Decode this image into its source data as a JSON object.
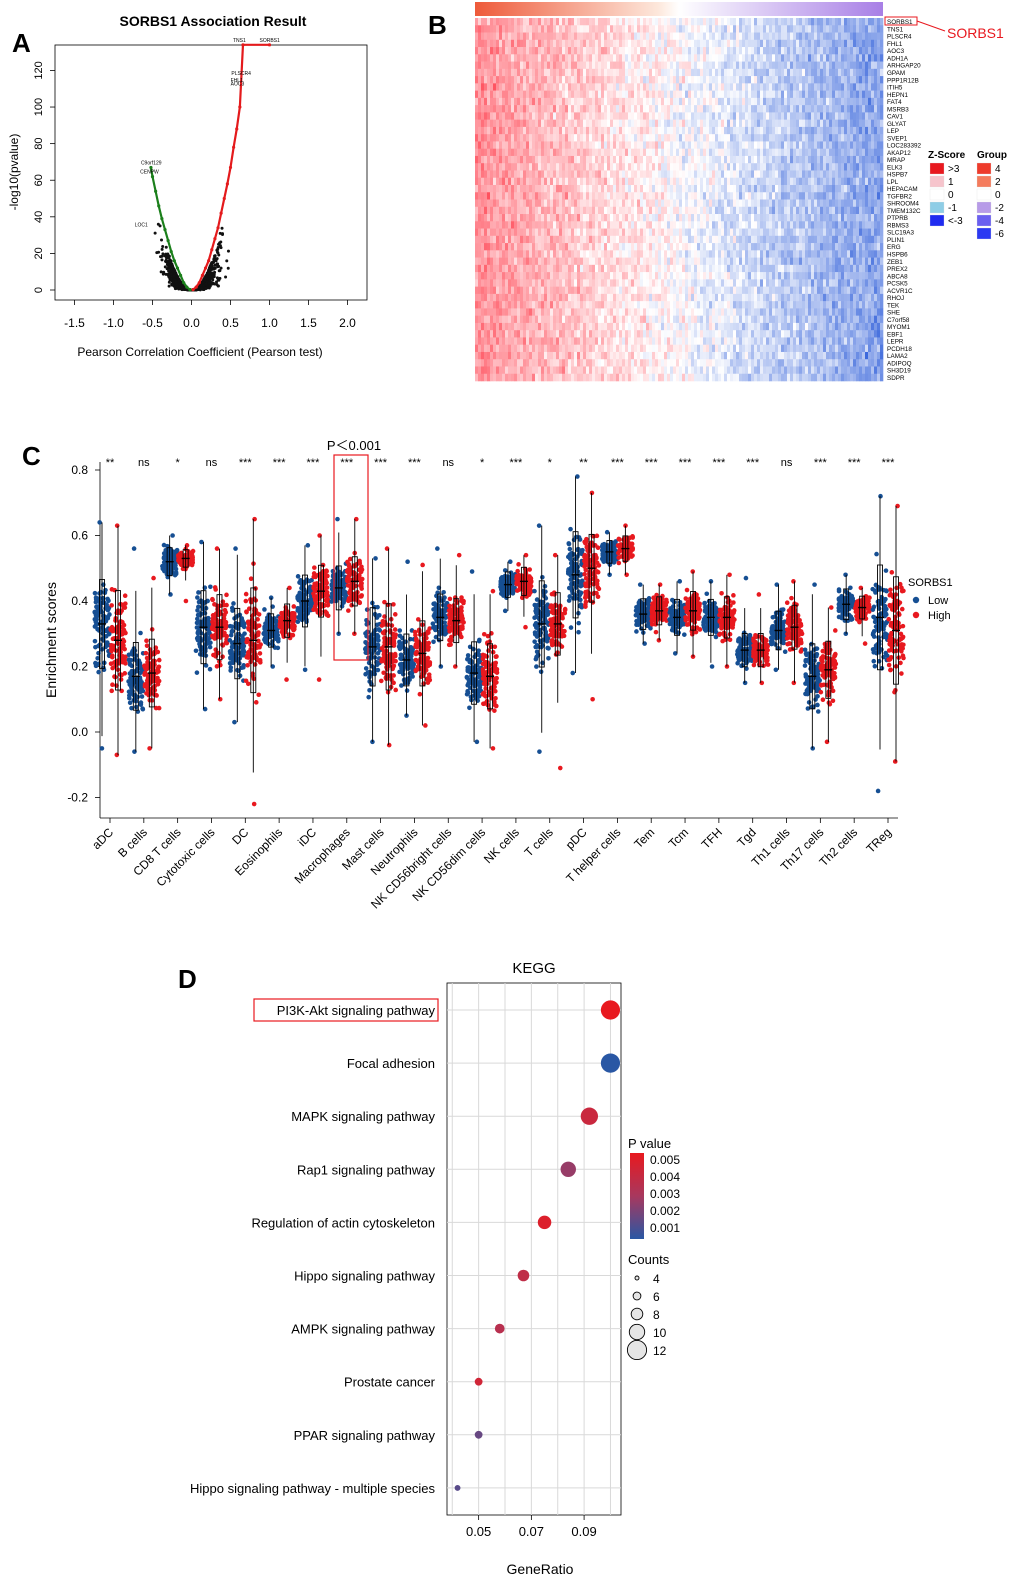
{
  "panels": {
    "A": "A",
    "B": "B",
    "C": "C",
    "D": "D"
  },
  "colors": {
    "red": "#e41a1c",
    "green": "#1b7f1b",
    "navy": "#1f4e8c",
    "high_red": "#e8191f",
    "low_blue": "#164f93",
    "pval_high": "#e8191f",
    "pval_low": "#2957a4"
  },
  "panelA": {
    "title": "SORBS1 Association Result",
    "xlabel": "Pearson Correlation Coefficient (Pearson test)",
    "ylabel": "-log10(pvalue)",
    "xticks": [
      "-1.5",
      "-1.0",
      "-0.5",
      "0.0",
      "0.5",
      "1.0",
      "1.5",
      "2.0"
    ],
    "yticks": [
      "0",
      "20",
      "40",
      "60",
      "80",
      "100",
      "120"
    ],
    "labels": [
      {
        "text": "TNS1",
        "x": 0.66,
        "y": 134
      },
      {
        "text": "SORBS1",
        "x": 1.0,
        "y": 134
      },
      {
        "text": "PLSCR4",
        "x": 0.64,
        "y": 116
      },
      {
        "text": "FHL1",
        "x": 0.63,
        "y": 112
      },
      {
        "text": "AOC3",
        "x": 0.63,
        "y": 110
      },
      {
        "text": "C9orf129",
        "x": -0.52,
        "y": 67
      },
      {
        "text": "CENPW",
        "x": -0.53,
        "y": 62
      },
      {
        "text": "LOC1",
        "x": -0.6,
        "y": 33
      }
    ]
  },
  "chart_data": [
    {
      "panel": "A",
      "type": "scatter",
      "title": "SORBS1 Association Result",
      "xlabel": "Pearson Correlation Coefficient (Pearson test)",
      "ylabel": "-log10(pvalue)",
      "xlim": [
        -1.5,
        2.0
      ],
      "ylim": [
        0,
        135
      ],
      "series": [
        {
          "group": "negative significant",
          "color": "#1b7f1b",
          "x": [
            -0.52,
            -0.5,
            -0.46,
            -0.42,
            -0.38,
            -0.34,
            -0.3,
            -0.26,
            -0.22,
            -0.18,
            -0.14,
            -0.1,
            -0.06,
            -0.02
          ],
          "y": [
            67,
            62,
            54,
            46,
            39,
            33,
            27,
            21,
            16,
            12,
            8,
            4,
            1.6,
            0.2
          ]
        },
        {
          "group": "positive significant",
          "color": "#e41a1c",
          "x": [
            0.02,
            0.06,
            0.1,
            0.14,
            0.18,
            0.22,
            0.26,
            0.3,
            0.34,
            0.38,
            0.42,
            0.46,
            0.5,
            0.54,
            0.58,
            0.62,
            0.66,
            1.0
          ],
          "y": [
            0.2,
            1.6,
            4,
            8,
            12,
            16,
            22,
            28,
            34,
            42,
            50,
            58,
            67,
            78,
            88,
            100,
            134,
            134
          ]
        }
      ]
    },
    {
      "panel": "B",
      "type": "heatmap",
      "genes": [
        "SORBS1",
        "TNS1",
        "PLSCR4",
        "FHL1",
        "AOC3",
        "ADH1A",
        "ARHGAP20",
        "GPAM",
        "PPP1R12B",
        "ITIH5",
        "HEPN1",
        "FAT4",
        "MSRB3",
        "CAV1",
        "GLYAT",
        "LEP",
        "SVEP1",
        "LOC283392",
        "AKAP12",
        "MRAP",
        "ELK3",
        "HSPB7",
        "LPL",
        "HEPACAM",
        "TGFBR2",
        "SHROOM4",
        "TMEM132C",
        "PTPRB",
        "RBMS3",
        "SLC19A3",
        "PLIN1",
        "ERG",
        "HSPB6",
        "ZEB1",
        "PREX2",
        "ABCA8",
        "PCSK5",
        "ACVR1C",
        "RHOJ",
        "TEK",
        "SHE",
        "C7orf58",
        "MYOM1",
        "EBF1",
        "LEPR",
        "PCDH18",
        "LAMA2",
        "ADIPOQ",
        "SH3D19",
        "SDPR"
      ],
      "highlight": "SORBS1",
      "zscore_legend": {
        "title": "Z-Score",
        "labels": [
          ">3",
          "1",
          "0",
          "-1",
          "<-3"
        ],
        "colors": [
          "#e8191f",
          "#f6c4cc",
          "#ffffff",
          "#8ecde6",
          "#1f2bf0"
        ]
      },
      "group_legend": {
        "title": "Group",
        "labels": [
          "4",
          "2",
          "0",
          "-2",
          "-4",
          "-6"
        ],
        "colors": [
          "#ee3b2b",
          "#f47b5c",
          "#ffffff",
          "#b79be8",
          "#6a5ff0",
          "#2b39f2"
        ]
      }
    },
    {
      "panel": "C",
      "type": "scatter",
      "subtype": "jitter-boxplot",
      "ylabel": "Enrichment scores",
      "ylim": [
        -0.22,
        0.8
      ],
      "yticks": [
        "-0.2",
        "0.0",
        "0.2",
        "0.4",
        "0.6",
        "0.8"
      ],
      "legend": {
        "title": "SORBS1",
        "items": [
          "Low",
          "High"
        ],
        "position": "right"
      },
      "annotation": "P＜0.001",
      "highlight": "Macrophages",
      "categories": [
        "aDC",
        "B cells",
        "CD8 T cells",
        "Cytotoxic cells",
        "DC",
        "Eosinophils",
        "iDC",
        "Macrophages",
        "Mast cells",
        "Neutrophils",
        "NK CD56bright cells",
        "NK CD56dim cells",
        "NK cells",
        "T cells",
        "pDC",
        "T helper cells",
        "Tem",
        "Tcm",
        "TFH",
        "Tgd",
        "Th1 cells",
        "Th17 cells",
        "Th2 cells",
        "TReg"
      ],
      "significance": [
        "**",
        "ns",
        "*",
        "ns",
        "***",
        "***",
        "***",
        "***",
        "***",
        "***",
        "ns",
        "*",
        "***",
        "*",
        "**",
        "***",
        "***",
        "***",
        "***",
        "***",
        "ns",
        "***",
        "***",
        "***"
      ],
      "series": [
        {
          "name": "Low",
          "median": [
            0.33,
            0.17,
            0.52,
            0.32,
            0.27,
            0.31,
            0.4,
            0.44,
            0.26,
            0.22,
            0.35,
            0.18,
            0.45,
            0.33,
            0.48,
            0.55,
            0.36,
            0.35,
            0.35,
            0.25,
            0.31,
            0.17,
            0.39,
            0.35
          ],
          "min": [
            -0.05,
            -0.06,
            0.42,
            0.07,
            0.03,
            0.2,
            0.19,
            0.3,
            -0.03,
            0.05,
            0.2,
            -0.03,
            0.37,
            -0.06,
            0.18,
            0.48,
            0.27,
            0.24,
            0.2,
            0.15,
            0.19,
            -0.05,
            0.3,
            -0.18
          ],
          "max": [
            0.64,
            0.56,
            0.6,
            0.58,
            0.56,
            0.41,
            0.57,
            0.65,
            0.53,
            0.52,
            0.56,
            0.49,
            0.52,
            0.63,
            0.78,
            0.61,
            0.45,
            0.46,
            0.46,
            0.47,
            0.45,
            0.45,
            0.48,
            0.72
          ]
        },
        {
          "name": "High",
          "median": [
            0.28,
            0.18,
            0.53,
            0.32,
            0.28,
            0.34,
            0.43,
            0.46,
            0.26,
            0.24,
            0.34,
            0.17,
            0.46,
            0.33,
            0.5,
            0.56,
            0.37,
            0.37,
            0.35,
            0.25,
            0.32,
            0.19,
            0.38,
            0.31
          ],
          "min": [
            -0.07,
            -0.05,
            0.4,
            0.1,
            -0.22,
            0.16,
            0.16,
            0.3,
            -0.04,
            0.02,
            0.2,
            -0.05,
            0.32,
            -0.11,
            0.1,
            0.48,
            0.28,
            0.23,
            0.2,
            0.15,
            0.15,
            -0.03,
            0.27,
            -0.09
          ],
          "max": [
            0.63,
            0.47,
            0.57,
            0.56,
            0.65,
            0.44,
            0.6,
            0.65,
            0.56,
            0.51,
            0.54,
            0.43,
            0.54,
            0.54,
            0.73,
            0.63,
            0.45,
            0.49,
            0.48,
            0.42,
            0.46,
            0.38,
            0.44,
            0.69
          ]
        }
      ]
    },
    {
      "panel": "D",
      "type": "scatter",
      "subtype": "dot",
      "title": "KEGG",
      "xlabel": "GeneRatio",
      "xticks": [
        "0.05",
        "0.07",
        "0.09"
      ],
      "xlim": [
        0.038,
        0.104
      ],
      "highlight": "PI3K-Akt signaling pathway",
      "categories": [
        "PI3K-Akt signaling pathway",
        "Focal adhesion",
        "MAPK signaling pathway",
        "Rap1 signaling pathway",
        "Regulation of actin cytoskeleton",
        "Hippo signaling pathway",
        "AMPK signaling pathway",
        "Prostate cancer",
        "PPAR signaling pathway",
        "Hippo signaling pathway - multiple species"
      ],
      "gene_ratio": [
        0.1,
        0.1,
        0.092,
        0.084,
        0.075,
        0.067,
        0.058,
        0.05,
        0.05,
        0.042
      ],
      "counts": [
        12,
        12,
        11,
        10,
        9,
        8,
        7,
        6,
        6,
        5
      ],
      "p_value": [
        0.0055,
        0.0002,
        0.0042,
        0.0025,
        0.005,
        0.0038,
        0.0035,
        0.0045,
        0.0015,
        0.0012
      ],
      "colorbar": {
        "title": "P value",
        "labels": [
          "0.005",
          "0.004",
          "0.003",
          "0.002",
          "0.001"
        ]
      },
      "size_legend": {
        "title": "Counts",
        "labels": [
          "4",
          "6",
          "8",
          "10",
          "12"
        ]
      }
    }
  ]
}
